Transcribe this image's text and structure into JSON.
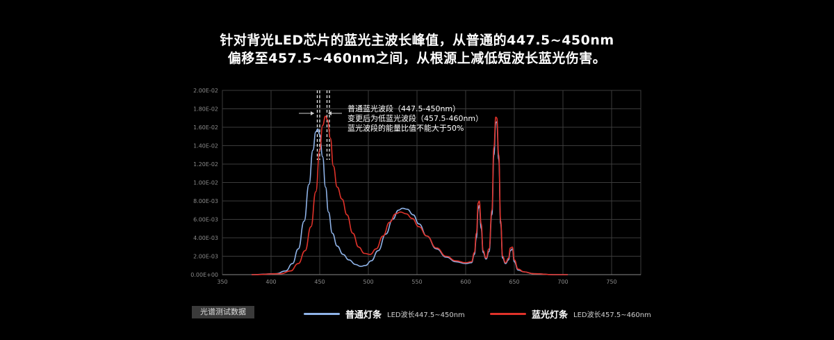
{
  "headline": {
    "line1": "针对背光LED芯片的蓝光主波长峰值，从普通的447.5~450nm",
    "line2": "偏移至457.5~460nm之间，从根源上减低短波长蓝光伤害。"
  },
  "annotation": {
    "line1": "普通蓝光波段（447.5-450nm）",
    "line2": "变更后为低蓝光波段（457.5-460nm）",
    "line3": "蓝光波段的能量比值不能大于50%"
  },
  "badge": "光谱测试数据",
  "legend": [
    {
      "name": "普通灯条",
      "desc": "LED波长447.5~450nm",
      "color": "#8fb3e8"
    },
    {
      "name": "蓝光灯条",
      "desc": "LED波长457.5~460nm",
      "color": "#e0322a"
    }
  ],
  "chart_data": {
    "type": "line",
    "title": "",
    "xlabel": "",
    "ylabel": "",
    "xlim": [
      350,
      780
    ],
    "ylim": [
      0,
      0.02
    ],
    "grid": true,
    "x_ticks": [
      350,
      400,
      450,
      500,
      550,
      600,
      650,
      700,
      750
    ],
    "x_tick_labels": [
      "350",
      "400",
      "450",
      "500",
      "550",
      "600",
      "650",
      "700",
      "750"
    ],
    "y_ticks": [
      0,
      0.002,
      0.004,
      0.006,
      0.008,
      0.01,
      0.012,
      0.014,
      0.016,
      0.018,
      0.02
    ],
    "y_tick_labels": [
      "0.00E+00",
      "2.00E-03",
      "4.00E-03",
      "6.00E-03",
      "8.00E-03",
      "1.00E-02",
      "1.20E-02",
      "1.40E-02",
      "1.60E-02",
      "1.80E-02",
      "2.00E-02"
    ],
    "markers": [
      447.5,
      450,
      457.5,
      460
    ],
    "series": [
      {
        "name": "普通灯条",
        "color": "#8fb3e8",
        "points": [
          [
            380,
            0
          ],
          [
            405,
            0.0001
          ],
          [
            415,
            0.0004
          ],
          [
            422,
            0.0012
          ],
          [
            428,
            0.0028
          ],
          [
            434,
            0.0058
          ],
          [
            439,
            0.0098
          ],
          [
            443,
            0.0135
          ],
          [
            446,
            0.0155
          ],
          [
            448,
            0.0158
          ],
          [
            450,
            0.0152
          ],
          [
            453,
            0.0128
          ],
          [
            456,
            0.0095
          ],
          [
            459,
            0.0068
          ],
          [
            463,
            0.0045
          ],
          [
            468,
            0.0031
          ],
          [
            474,
            0.0022
          ],
          [
            480,
            0.0016
          ],
          [
            487,
            0.0011
          ],
          [
            492,
            0.0009
          ],
          [
            497,
            0.001
          ],
          [
            503,
            0.0015
          ],
          [
            510,
            0.0026
          ],
          [
            518,
            0.0044
          ],
          [
            525,
            0.006
          ],
          [
            531,
            0.007
          ],
          [
            535,
            0.0072
          ],
          [
            540,
            0.0071
          ],
          [
            546,
            0.0065
          ],
          [
            552,
            0.0055
          ],
          [
            560,
            0.0042
          ],
          [
            570,
            0.0028
          ],
          [
            580,
            0.0019
          ],
          [
            590,
            0.0014
          ],
          [
            600,
            0.0012
          ],
          [
            606,
            0.0013
          ],
          [
            609,
            0.0022
          ],
          [
            611,
            0.004
          ],
          [
            613,
            0.0072
          ],
          [
            614,
            0.0075
          ],
          [
            616,
            0.005
          ],
          [
            618,
            0.0024
          ],
          [
            621,
            0.0017
          ],
          [
            624,
            0.0025
          ],
          [
            627,
            0.0065
          ],
          [
            629,
            0.013
          ],
          [
            631,
            0.0165
          ],
          [
            632,
            0.0166
          ],
          [
            634,
            0.0125
          ],
          [
            636,
            0.0055
          ],
          [
            638,
            0.0018
          ],
          [
            641,
            0.0012
          ],
          [
            644,
            0.0016
          ],
          [
            646,
            0.0026
          ],
          [
            648,
            0.0028
          ],
          [
            650,
            0.0014
          ],
          [
            654,
            0.0005
          ],
          [
            660,
            0.0003
          ],
          [
            670,
            0.0001
          ],
          [
            690,
            0
          ],
          [
            705,
            0
          ]
        ]
      },
      {
        "name": "蓝光灯条",
        "color": "#e0322a",
        "points": [
          [
            380,
            0
          ],
          [
            410,
            0.0001
          ],
          [
            420,
            0.0004
          ],
          [
            428,
            0.0012
          ],
          [
            435,
            0.0026
          ],
          [
            441,
            0.0052
          ],
          [
            446,
            0.009
          ],
          [
            450,
            0.0135
          ],
          [
            453,
            0.0162
          ],
          [
            456,
            0.0172
          ],
          [
            458,
            0.0168
          ],
          [
            461,
            0.0148
          ],
          [
            464,
            0.0118
          ],
          [
            468,
            0.0095
          ],
          [
            473,
            0.0082
          ],
          [
            478,
            0.0065
          ],
          [
            484,
            0.0045
          ],
          [
            490,
            0.003
          ],
          [
            496,
            0.0023
          ],
          [
            502,
            0.0022
          ],
          [
            508,
            0.0028
          ],
          [
            515,
            0.0042
          ],
          [
            522,
            0.0057
          ],
          [
            528,
            0.0066
          ],
          [
            533,
            0.0068
          ],
          [
            539,
            0.0066
          ],
          [
            545,
            0.0061
          ],
          [
            552,
            0.0052
          ],
          [
            560,
            0.0042
          ],
          [
            570,
            0.0029
          ],
          [
            580,
            0.002
          ],
          [
            590,
            0.0015
          ],
          [
            600,
            0.0013
          ],
          [
            606,
            0.0014
          ],
          [
            609,
            0.0024
          ],
          [
            611,
            0.0045
          ],
          [
            613,
            0.0078
          ],
          [
            614,
            0.008
          ],
          [
            616,
            0.0055
          ],
          [
            618,
            0.0026
          ],
          [
            621,
            0.0018
          ],
          [
            624,
            0.0028
          ],
          [
            627,
            0.007
          ],
          [
            629,
            0.0138
          ],
          [
            631,
            0.0171
          ],
          [
            632,
            0.017
          ],
          [
            634,
            0.013
          ],
          [
            636,
            0.0058
          ],
          [
            638,
            0.002
          ],
          [
            641,
            0.0013
          ],
          [
            644,
            0.0018
          ],
          [
            646,
            0.0029
          ],
          [
            648,
            0.003
          ],
          [
            650,
            0.0016
          ],
          [
            654,
            0.0006
          ],
          [
            660,
            0.0003
          ],
          [
            670,
            0.0001
          ],
          [
            690,
            0
          ],
          [
            705,
            0
          ]
        ]
      }
    ]
  }
}
